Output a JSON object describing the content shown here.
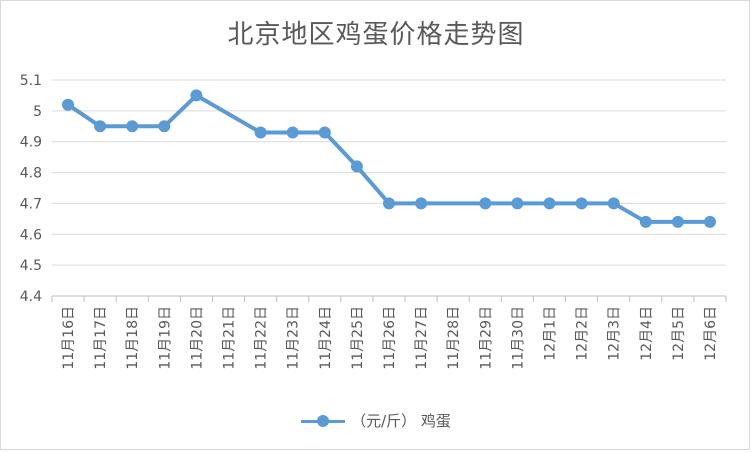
{
  "chart_data": {
    "type": "line",
    "title": "北京地区鸡蛋价格走势图",
    "xlabel": "",
    "ylabel": "",
    "categories": [
      "11月16日",
      "11月17日",
      "11月18日",
      "11月19日",
      "11月20日",
      "11月21日",
      "11月22日",
      "11月23日",
      "11月24日",
      "11月25日",
      "11月26日",
      "11月27日",
      "11月28日",
      "11月29日",
      "11月30日",
      "12月1日",
      "12月2日",
      "12月3日",
      "12月4日",
      "12月5日",
      "12月6日"
    ],
    "y_ticks": [
      "4.4",
      "4.5",
      "4.6",
      "4.7",
      "4.8",
      "4.9",
      "5",
      "5.1"
    ],
    "ylim": [
      4.4,
      5.1
    ],
    "grid": true,
    "legend_position": "bottom",
    "series": [
      {
        "name": "（元/斤） 鸡蛋",
        "color": "#5b9bd5",
        "values": [
          5.02,
          4.95,
          4.95,
          4.95,
          5.05,
          null,
          4.93,
          4.93,
          4.93,
          4.82,
          4.7,
          4.7,
          null,
          4.7,
          4.7,
          4.7,
          4.7,
          4.7,
          4.64,
          4.64,
          4.64
        ]
      }
    ]
  }
}
